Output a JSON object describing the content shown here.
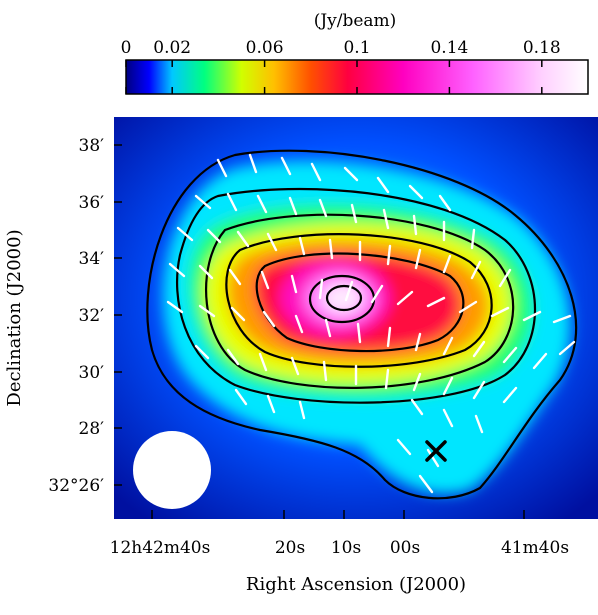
{
  "colorbar": {
    "unit_label": "(Jy/beam)",
    "range": [
      0,
      0.2
    ],
    "ticks": [
      {
        "value": 0.0,
        "label": "0"
      },
      {
        "value": 0.02,
        "label": "0.02"
      },
      {
        "value": 0.06,
        "label": "0.06"
      },
      {
        "value": 0.1,
        "label": "0.1"
      },
      {
        "value": 0.14,
        "label": "0.14"
      },
      {
        "value": 0.18,
        "label": "0.18"
      }
    ]
  },
  "axes": {
    "xlabel": "Right Ascension (J2000)",
    "ylabel": "Declination (J2000)",
    "xticks": [
      {
        "label": "12h42m40s"
      },
      {
        "label": "20s"
      },
      {
        "label": "10s"
      },
      {
        "label": "00s"
      },
      {
        "label": "41m40s"
      }
    ],
    "yticks": [
      {
        "label": "38′"
      },
      {
        "label": "36′"
      },
      {
        "label": "34′"
      },
      {
        "label": "32′"
      },
      {
        "label": "30′"
      },
      {
        "label": "28′"
      },
      {
        "label": "32°26′"
      }
    ]
  },
  "markers": [
    {
      "symbol": "×",
      "meaning": "cross marker"
    }
  ],
  "beam": {
    "shape": "circle",
    "color": "#ffffff"
  }
}
